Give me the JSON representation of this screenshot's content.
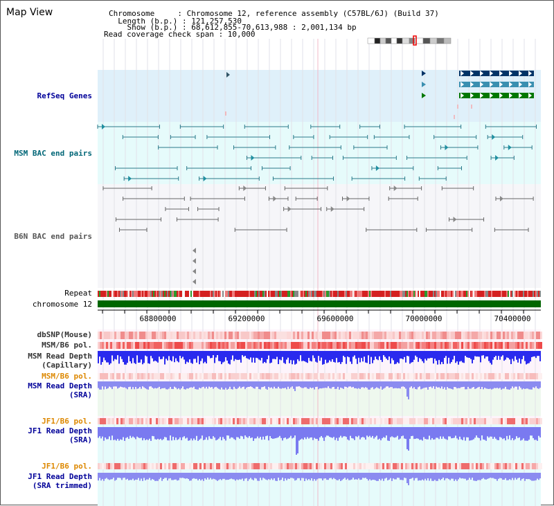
{
  "view_title": "Map View",
  "info": {
    "chromosome": "Chromosome     : Chromosome 12, reference assembly (C57BL/6J) (Build 37)",
    "length": "  Length (b.p.) : 121,257,530",
    "show": "    Show (b.p.) : 68,612,855-70,613,988 : 2,001,134 bp",
    "span": "Read coverage check span : 10,000"
  },
  "tracks": {
    "refseq": "RefSeq Genes",
    "msm_bac": "MSM BAC end pairs",
    "b6n_bac": "B6N BAC end pairs",
    "repeat": "Repeat",
    "chromosome": "chromosome 12",
    "dbsnp": "dbSNP(Mouse)",
    "msm_b6_pol_1": "MSM/B6 pol.",
    "msm_depth_cap_1": "MSM Read Depth",
    "msm_depth_cap_2": "(Capillary)",
    "msm_b6_pol_2": "MSM/B6 pol.",
    "msm_depth_sra_1": "MSM Read Depth",
    "msm_depth_sra_2": "(SRA)",
    "jf1_b6_pol_1": "JF1/B6 pol.",
    "jf1_depth_sra_1": "JF1 Read Depth",
    "jf1_depth_sra_2": "(SRA)",
    "jf1_b6_pol_2": "JF1/B6 pol.",
    "jf1_depth_trim_1": "JF1 Read Depth",
    "jf1_depth_trim_2": "(SRA trimmed)"
  },
  "axis": {
    "ticks": [
      "68800000",
      "69200000",
      "69600000",
      "70000000",
      "70400000"
    ]
  },
  "colors": {
    "refseq_label": "#000099",
    "msm_label": "#006677",
    "b6n_label": "#555555",
    "pol_label": "#dd8800",
    "depth_label": "#000099",
    "chromosome_bar": "#006600",
    "refseq_bg": "#dff0fa",
    "msm_bg": "#e6fbfb"
  }
}
